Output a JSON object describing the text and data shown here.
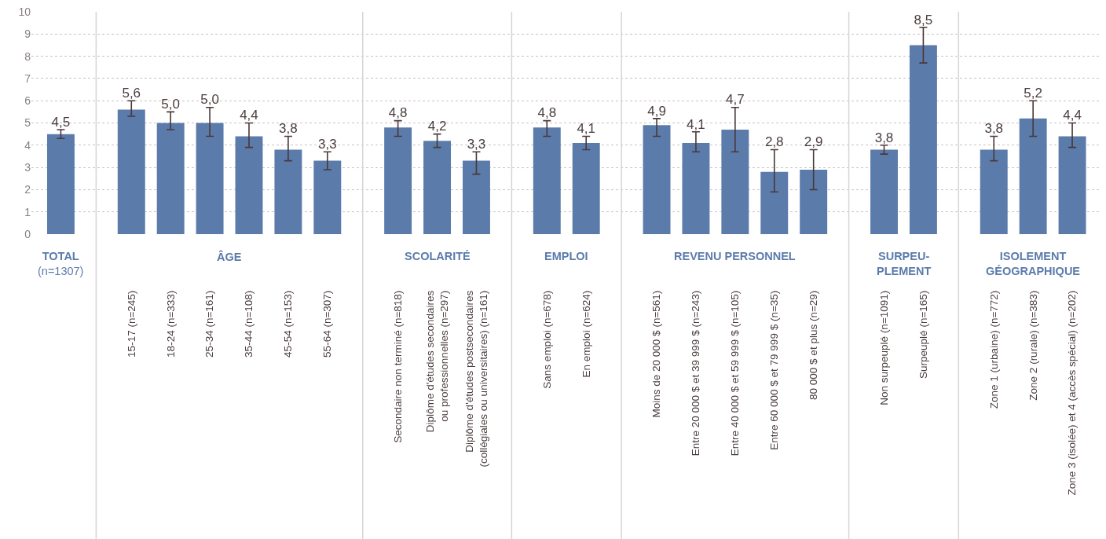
{
  "chart_data": {
    "type": "bar",
    "categories": [
      null,
      "15-17 (n=245)",
      "18-24 (n=333)",
      "25-34 (n=161)",
      "35-44 (n=108)",
      "45-54 (n=153)",
      "55-64 (n=307)",
      "Secondaire non terminé (n=818)",
      "Diplôme d'études secondaires\nou professionnelles (n=297)",
      "Diplôme d'études postsecondaires\n(collégiales ou universitaires) (n=161)",
      "Sans emploi (n=678)",
      "En emploi (n=624)",
      "Moins de 20 000 $ (n=561)",
      "Entre 20 000 $ et 39 999 $ (n=243)",
      "Entre 40 000 $ et 59 999 $ (n=105)",
      "Entre 60 000 $ et 79 999 $ (n=35)",
      "80 000 $ et plus (n=29)",
      "Non surpeuplé (n=1091)",
      "Surpeuplé (n=165)",
      "Zone 1 (urbaine) (n=772)",
      "Zone 2 (rurale) (n=383)",
      "Zone 3 (isolée) et 4 (accès spécial) (n=202)"
    ],
    "values": [
      4.5,
      5.6,
      5.0,
      5.0,
      4.4,
      3.8,
      3.3,
      4.8,
      4.2,
      3.3,
      4.8,
      4.1,
      4.9,
      4.1,
      4.7,
      2.8,
      2.9,
      3.8,
      8.5,
      3.8,
      5.2,
      4.4
    ],
    "value_labels": [
      "4,5",
      "5,6",
      "5,0",
      "5,0",
      "4,4",
      "3,8",
      "3,3",
      "4,8",
      "4,2",
      "3,3",
      "4,8",
      "4,1",
      "4,9",
      "4,1",
      "4,7",
      "2,8",
      "2,9",
      "3,8",
      "8,5",
      "3,8",
      "5,2",
      "4,4"
    ],
    "errors": [
      [
        4.3,
        4.7
      ],
      [
        5.3,
        6.0
      ],
      [
        4.7,
        5.5
      ],
      [
        4.4,
        5.7
      ],
      [
        3.9,
        5.0
      ],
      [
        3.3,
        4.4
      ],
      [
        2.9,
        3.7
      ],
      [
        4.4,
        5.1
      ],
      [
        3.9,
        4.5
      ],
      [
        2.7,
        3.7
      ],
      [
        4.4,
        5.1
      ],
      [
        3.8,
        4.4
      ],
      [
        4.4,
        5.2
      ],
      [
        3.7,
        4.6
      ],
      [
        3.7,
        5.7
      ],
      [
        1.9,
        3.8
      ],
      [
        2.0,
        3.8
      ],
      [
        3.6,
        4.0
      ],
      [
        7.7,
        9.3
      ],
      [
        3.3,
        4.4
      ],
      [
        4.4,
        6.0
      ],
      [
        3.9,
        5.0
      ]
    ],
    "color": "#5b7bab",
    "ylim": [
      0,
      10
    ],
    "yticks": [
      0,
      1,
      2,
      3,
      4,
      5,
      6,
      7,
      8,
      9,
      10
    ],
    "grid": "y",
    "annotations": [
      "TOTAL\n(n=1307)",
      "ÂGE",
      "SCOLARITÉ",
      "EMPLOI",
      "REVENU PERSONNEL",
      "SURPEU-\nPLEMENT",
      "ISOLEMENT\nGÉOGRAPHIQUE"
    ]
  }
}
